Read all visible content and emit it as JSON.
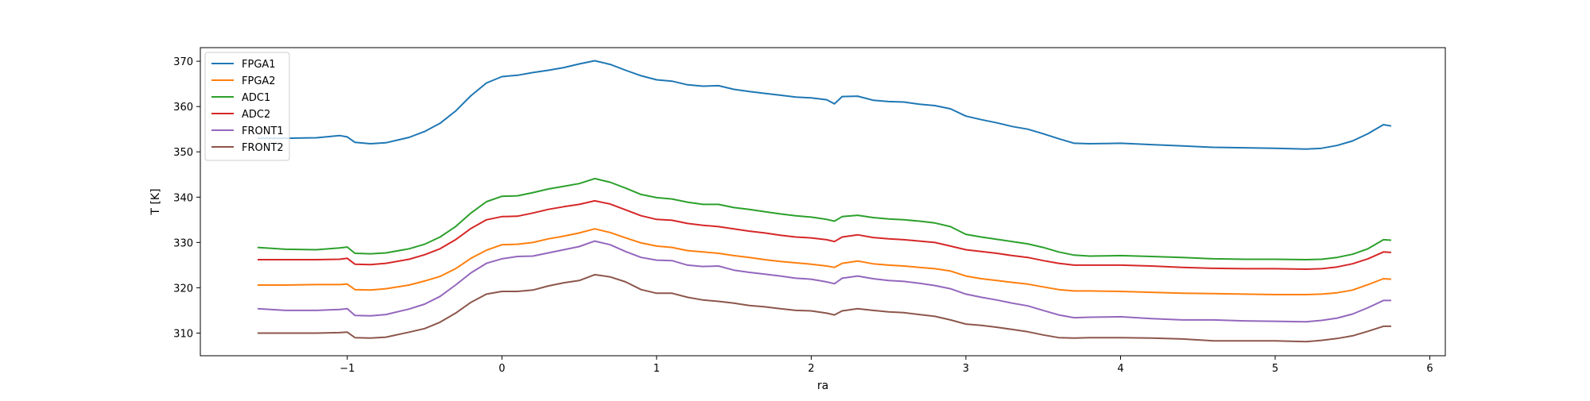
{
  "chart_data": {
    "type": "line",
    "title": "",
    "xlabel": "ra",
    "ylabel": "T [K]",
    "xlim": [
      -1.95,
      6.1
    ],
    "ylim": [
      305,
      373
    ],
    "xticks": [
      -1,
      0,
      1,
      2,
      3,
      4,
      5,
      6
    ],
    "xtick_labels": [
      "−1",
      "0",
      "1",
      "2",
      "3",
      "4",
      "5",
      "6"
    ],
    "yticks": [
      310,
      320,
      330,
      340,
      350,
      360,
      370
    ],
    "ytick_labels": [
      "310",
      "320",
      "330",
      "340",
      "350",
      "360",
      "370"
    ],
    "grid": false,
    "legend_position": "upper-left",
    "x": [
      -1.58,
      -1.4,
      -1.2,
      -1.05,
      -1.0,
      -0.95,
      -0.85,
      -0.75,
      -0.6,
      -0.5,
      -0.4,
      -0.3,
      -0.2,
      -0.1,
      0.0,
      0.1,
      0.2,
      0.3,
      0.4,
      0.5,
      0.6,
      0.7,
      0.8,
      0.9,
      1.0,
      1.1,
      1.2,
      1.3,
      1.4,
      1.5,
      1.6,
      1.7,
      1.8,
      1.9,
      2.0,
      2.1,
      2.15,
      2.2,
      2.3,
      2.4,
      2.5,
      2.6,
      2.7,
      2.8,
      2.9,
      3.0,
      3.1,
      3.2,
      3.3,
      3.4,
      3.5,
      3.6,
      3.7,
      3.8,
      4.0,
      4.2,
      4.4,
      4.6,
      4.8,
      5.0,
      5.2,
      5.3,
      5.4,
      5.5,
      5.6,
      5.7,
      5.75
    ],
    "series": [
      {
        "name": "FPGA1",
        "color": "#1f77b4",
        "values": [
          353.0,
          353.0,
          353.1,
          353.6,
          353.3,
          352.1,
          351.8,
          352.0,
          353.2,
          354.5,
          356.3,
          359.0,
          362.4,
          365.2,
          366.6,
          366.9,
          367.5,
          368.0,
          368.6,
          369.4,
          370.1,
          369.3,
          368.0,
          366.8,
          365.9,
          365.6,
          364.8,
          364.5,
          364.6,
          363.8,
          363.3,
          362.9,
          362.5,
          362.1,
          361.9,
          361.5,
          360.6,
          362.2,
          362.3,
          361.4,
          361.1,
          361.0,
          360.5,
          360.2,
          359.5,
          357.9,
          357.1,
          356.4,
          355.6,
          355.0,
          354.0,
          352.9,
          351.9,
          351.8,
          351.9,
          351.6,
          351.3,
          351.0,
          350.9,
          350.8,
          350.6,
          350.8,
          351.4,
          352.4,
          354.0,
          356.0,
          355.7
        ]
      },
      {
        "name": "FPGA2",
        "color": "#ff7f0e",
        "values": [
          320.6,
          320.6,
          320.7,
          320.7,
          320.8,
          319.6,
          319.5,
          319.8,
          320.6,
          321.5,
          322.5,
          324.2,
          326.5,
          328.3,
          329.5,
          329.6,
          330.0,
          330.8,
          331.4,
          332.1,
          333.0,
          332.2,
          331.0,
          329.9,
          329.2,
          328.9,
          328.2,
          327.9,
          327.6,
          327.1,
          326.7,
          326.2,
          325.8,
          325.5,
          325.2,
          324.8,
          324.5,
          325.4,
          325.9,
          325.3,
          325.0,
          324.8,
          324.5,
          324.2,
          323.7,
          322.6,
          322.0,
          321.6,
          321.2,
          320.8,
          320.2,
          319.6,
          319.3,
          319.3,
          319.2,
          319.0,
          318.8,
          318.7,
          318.6,
          318.5,
          318.5,
          318.6,
          318.9,
          319.5,
          320.7,
          322.0,
          321.9
        ]
      },
      {
        "name": "ADC1",
        "color": "#2ca02c",
        "values": [
          328.9,
          328.5,
          328.4,
          328.8,
          329.0,
          327.6,
          327.5,
          327.7,
          328.6,
          329.6,
          331.2,
          333.5,
          336.5,
          339.0,
          340.2,
          340.3,
          341.0,
          341.8,
          342.4,
          343.0,
          344.1,
          343.3,
          342.0,
          340.6,
          339.9,
          339.6,
          338.9,
          338.4,
          338.4,
          337.7,
          337.3,
          336.8,
          336.3,
          335.9,
          335.6,
          335.1,
          334.7,
          335.7,
          336.0,
          335.5,
          335.2,
          335.0,
          334.7,
          334.3,
          333.5,
          331.8,
          331.2,
          330.7,
          330.2,
          329.7,
          328.9,
          327.9,
          327.2,
          327.0,
          327.1,
          326.9,
          326.7,
          326.4,
          326.3,
          326.3,
          326.2,
          326.3,
          326.7,
          327.4,
          328.6,
          330.6,
          330.5
        ]
      },
      {
        "name": "ADC2",
        "color": "#d62728",
        "values": [
          326.2,
          326.2,
          326.2,
          326.3,
          326.5,
          325.2,
          325.1,
          325.4,
          326.3,
          327.3,
          328.6,
          330.6,
          333.1,
          335.0,
          335.7,
          335.8,
          336.5,
          337.3,
          337.9,
          338.4,
          339.2,
          338.5,
          337.2,
          335.9,
          335.1,
          334.9,
          334.2,
          333.8,
          333.5,
          333.0,
          332.5,
          332.1,
          331.6,
          331.2,
          331.0,
          330.6,
          330.2,
          331.2,
          331.7,
          331.1,
          330.8,
          330.6,
          330.3,
          330.0,
          329.2,
          328.4,
          328.0,
          327.6,
          327.1,
          326.7,
          326.0,
          325.4,
          325.0,
          325.0,
          325.0,
          324.8,
          324.5,
          324.3,
          324.2,
          324.2,
          324.1,
          324.2,
          324.6,
          325.3,
          326.4,
          327.9,
          327.8
        ]
      },
      {
        "name": "FRONT1",
        "color": "#9467bd",
        "values": [
          315.4,
          315.0,
          315.0,
          315.2,
          315.4,
          313.9,
          313.8,
          314.1,
          315.3,
          316.4,
          318.1,
          320.6,
          323.3,
          325.4,
          326.4,
          326.9,
          327.0,
          327.7,
          328.4,
          329.1,
          330.3,
          329.5,
          328.0,
          326.7,
          326.1,
          326.0,
          325.0,
          324.7,
          324.8,
          323.9,
          323.4,
          323.0,
          322.6,
          322.1,
          321.9,
          321.3,
          320.9,
          322.1,
          322.6,
          322.0,
          321.6,
          321.4,
          321.0,
          320.5,
          319.8,
          318.6,
          317.9,
          317.3,
          316.6,
          316.0,
          315.0,
          314.0,
          313.4,
          313.5,
          313.6,
          313.2,
          312.9,
          312.9,
          312.7,
          312.6,
          312.5,
          312.8,
          313.3,
          314.2,
          315.6,
          317.2,
          317.2
        ]
      },
      {
        "name": "FRONT2",
        "color": "#8c564b",
        "values": [
          310.0,
          310.0,
          310.0,
          310.1,
          310.2,
          309.0,
          308.9,
          309.1,
          310.2,
          311.0,
          312.4,
          314.4,
          316.8,
          318.6,
          319.2,
          319.2,
          319.5,
          320.4,
          321.1,
          321.6,
          322.9,
          322.4,
          321.3,
          319.6,
          318.8,
          318.8,
          317.9,
          317.3,
          317.0,
          316.6,
          316.1,
          315.8,
          315.4,
          315.0,
          314.9,
          314.4,
          314.0,
          314.9,
          315.4,
          315.0,
          314.7,
          314.5,
          314.1,
          313.7,
          312.9,
          312.0,
          311.7,
          311.3,
          310.8,
          310.3,
          309.6,
          309.0,
          308.9,
          309.0,
          309.0,
          308.9,
          308.7,
          308.3,
          308.3,
          308.3,
          308.1,
          308.4,
          308.8,
          309.4,
          310.4,
          311.5,
          311.5
        ]
      }
    ]
  }
}
